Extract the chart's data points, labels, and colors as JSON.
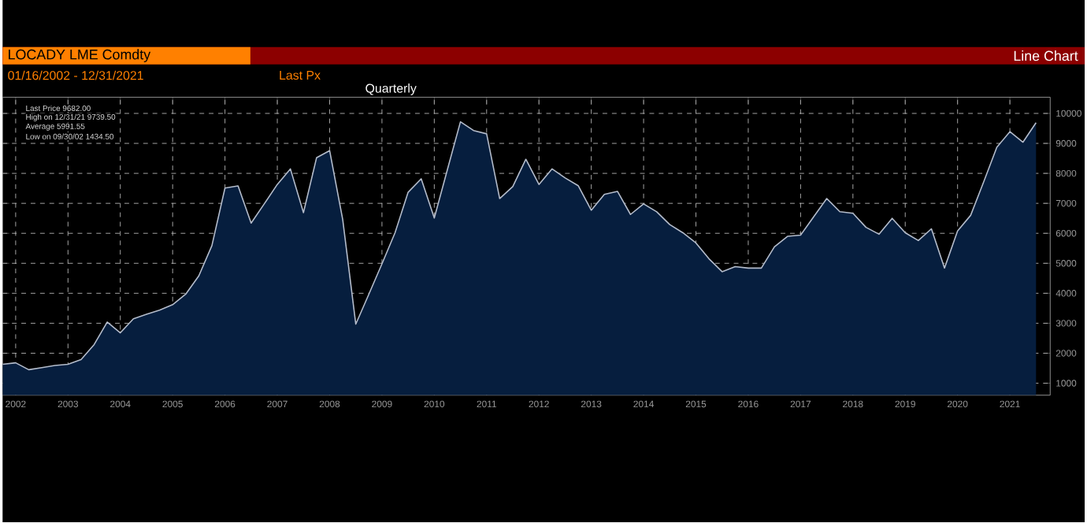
{
  "chart_data": {
    "type": "area",
    "title": "LOCADY LME Comdty",
    "subtitle": "Line Chart",
    "annotations": [
      "01/16/2002 - 12/31/2021",
      "Last Px",
      "Quarterly",
      "Last Price 9682.00",
      "High on 12/31/21 9739.50",
      "Average 5991.55",
      "Low on 09/30/02 1434.50"
    ],
    "x": [
      2002.25,
      2002.5,
      2002.75,
      2003.0,
      2003.25,
      2003.5,
      2003.75,
      2004.0,
      2004.25,
      2004.5,
      2004.75,
      2005.0,
      2005.25,
      2005.5,
      2005.75,
      2006.0,
      2006.25,
      2006.5,
      2006.75,
      2007.0,
      2007.25,
      2007.5,
      2007.75,
      2008.0,
      2008.25,
      2008.5,
      2008.75,
      2009.0,
      2009.25,
      2009.5,
      2009.75,
      2010.0,
      2010.25,
      2010.5,
      2010.75,
      2011.0,
      2011.25,
      2011.5,
      2011.75,
      2012.0,
      2012.25,
      2012.5,
      2012.75,
      2013.0,
      2013.25,
      2013.5,
      2013.75,
      2014.0,
      2014.25,
      2014.5,
      2014.75,
      2015.0,
      2015.25,
      2015.5,
      2015.75,
      2016.0,
      2016.25,
      2016.5,
      2016.75,
      2017.0,
      2017.25,
      2017.5,
      2017.75,
      2018.0,
      2018.25,
      2018.5,
      2018.75,
      2019.0,
      2019.25,
      2019.5,
      2019.75,
      2020.0,
      2020.25,
      2020.5,
      2020.75,
      2021.0,
      2021.25,
      2021.5,
      2021.75,
      2022.0
    ],
    "series": [
      {
        "color": "#b4bccb",
        "values": [
          1630,
          1680,
          1450,
          1520,
          1590,
          1630,
          1790,
          2290,
          3040,
          2680,
          3150,
          3300,
          3440,
          3620,
          3970,
          4580,
          5590,
          7510,
          7580,
          6340,
          6980,
          7630,
          8150,
          6690,
          8520,
          8760,
          6460,
          2970,
          3970,
          4980,
          6020,
          7370,
          7820,
          6510,
          8120,
          9720,
          9430,
          9320,
          7160,
          7560,
          8470,
          7630,
          8150,
          7850,
          7590,
          6770,
          7300,
          7400,
          6630,
          6980,
          6720,
          6290,
          6020,
          5680,
          5150,
          4720,
          4890,
          4840,
          4840,
          5550,
          5900,
          5940,
          6550,
          7160,
          6720,
          6670,
          6200,
          5970,
          6500,
          6020,
          5760,
          6150,
          4840,
          6080,
          6600,
          7720,
          8870,
          9390,
          9040,
          9690
        ]
      }
    ],
    "xlim": [
      2002.25,
      2022.27
    ],
    "xticks": [
      {
        "value": 2002.5,
        "label": "2002"
      },
      {
        "value": 2003.5,
        "label": "2003"
      },
      {
        "value": 2004.5,
        "label": "2004"
      },
      {
        "value": 2005.5,
        "label": "2005"
      },
      {
        "value": 2006.5,
        "label": "2006"
      },
      {
        "value": 2007.5,
        "label": "2007"
      },
      {
        "value": 2008.5,
        "label": "2008"
      },
      {
        "value": 2009.5,
        "label": "2009"
      },
      {
        "value": 2010.5,
        "label": "2010"
      },
      {
        "value": 2011.5,
        "label": "2011"
      },
      {
        "value": 2012.5,
        "label": "2012"
      },
      {
        "value": 2013.5,
        "label": "2013"
      },
      {
        "value": 2014.5,
        "label": "2014"
      },
      {
        "value": 2015.5,
        "label": "2015"
      },
      {
        "value": 2016.5,
        "label": "2016"
      },
      {
        "value": 2017.5,
        "label": "2017"
      },
      {
        "value": 2018.5,
        "label": "2018"
      },
      {
        "value": 2019.5,
        "label": "2019"
      },
      {
        "value": 2020.5,
        "label": "2020"
      },
      {
        "value": 2021.5,
        "label": "2021"
      }
    ],
    "ylim": [
      600,
      10540
    ],
    "yticks": [
      1000,
      2000,
      3000,
      4000,
      5000,
      6000,
      7000,
      8000,
      9000,
      10000
    ],
    "grid": true,
    "marker": "none",
    "line_style": "solid"
  }
}
